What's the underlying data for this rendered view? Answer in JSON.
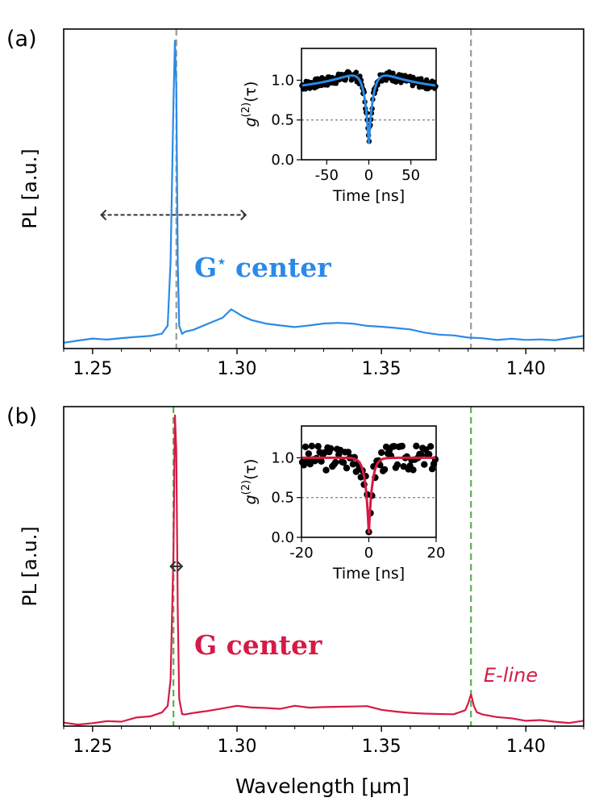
{
  "figure": {
    "xlabel": "Wavelength [μm]",
    "colors": {
      "blue": "#2b8ae6",
      "red": "#d61a45",
      "grey": "#9a9a9a",
      "green": "#5aaf50",
      "black": "#000000",
      "dark": "#333333"
    }
  },
  "chart_data": [
    {
      "type": "line",
      "panel_label": "(a)",
      "ylabel": "PL [a.u.]",
      "annotation": "G",
      "annotation_sup": "⋆",
      "annotation_suffix": " center",
      "xlim": [
        1.24,
        1.42
      ],
      "ylim": [
        0,
        1.1
      ],
      "xticks": [
        1.25,
        1.3,
        1.35,
        1.4
      ],
      "xtick_labels": [
        "1.25",
        "1.30",
        "1.35",
        "1.40"
      ],
      "vlines": [
        1.279,
        1.381
      ],
      "vline_color": "grey",
      "bar": {
        "x0": 1.253,
        "x1": 1.303,
        "y": 0.46
      },
      "series": [
        {
          "color": "blue",
          "x": [
            1.24,
            1.245,
            1.25,
            1.255,
            1.26,
            1.265,
            1.27,
            1.274,
            1.276,
            1.277,
            1.278,
            1.2785,
            1.279,
            1.2795,
            1.28,
            1.281,
            1.282,
            1.285,
            1.29,
            1.295,
            1.298,
            1.3,
            1.302,
            1.305,
            1.31,
            1.315,
            1.32,
            1.325,
            1.33,
            1.335,
            1.34,
            1.345,
            1.35,
            1.355,
            1.36,
            1.365,
            1.37,
            1.375,
            1.38,
            1.385,
            1.39,
            1.395,
            1.4,
            1.405,
            1.41,
            1.415,
            1.42
          ],
          "y": [
            0.02,
            0.025,
            0.03,
            0.025,
            0.03,
            0.035,
            0.04,
            0.05,
            0.08,
            0.3,
            0.85,
            1.06,
            0.9,
            0.3,
            0.08,
            0.05,
            0.055,
            0.06,
            0.08,
            0.1,
            0.13,
            0.12,
            0.11,
            0.1,
            0.09,
            0.085,
            0.08,
            0.085,
            0.09,
            0.09,
            0.085,
            0.075,
            0.07,
            0.065,
            0.06,
            0.05,
            0.045,
            0.045,
            0.04,
            0.04,
            0.035,
            0.04,
            0.035,
            0.035,
            0.03,
            0.035,
            0.04
          ]
        }
      ],
      "inset": {
        "xlim": [
          -80,
          80
        ],
        "ylim": [
          0,
          1.4
        ],
        "xticks": [
          -50,
          0,
          50
        ],
        "xtick_labels": [
          "-50",
          "0",
          "50"
        ],
        "yticks": [
          0,
          0.5,
          1.0
        ],
        "ytick_labels": [
          "0.0",
          "0.5",
          "1.0"
        ],
        "xlabel": "Time [ns]",
        "ylabel": "g(2)(τ)",
        "ylabel_base": "g",
        "ylabel_sup": "(2)",
        "ylabel_arg": "(τ)",
        "hline": 0.5,
        "fit": {
          "a": 0.8,
          "t": 5,
          "b": 0.22,
          "c": 28,
          "d": 0.08
        },
        "points": {
          "n": 220,
          "noise": 0.06,
          "seed": 7
        }
      }
    },
    {
      "type": "line",
      "panel_label": "(b)",
      "ylabel": "PL [a.u.]",
      "annotation": "G center",
      "annotation_sup": "",
      "annotation_suffix": "",
      "side_label": "E-line",
      "xlim": [
        1.24,
        1.42
      ],
      "ylim": [
        0,
        1.1
      ],
      "xticks": [
        1.25,
        1.3,
        1.35,
        1.4
      ],
      "xtick_labels": [
        "1.25",
        "1.30",
        "1.35",
        "1.40"
      ],
      "vlines": [
        1.278,
        1.381
      ],
      "vline_color": "green",
      "bar": {
        "x0": 1.277,
        "x1": 1.281,
        "y": 0.55
      },
      "series": [
        {
          "color": "red",
          "x": [
            1.24,
            1.245,
            1.25,
            1.255,
            1.26,
            1.265,
            1.27,
            1.274,
            1.276,
            1.277,
            1.278,
            1.2785,
            1.279,
            1.2795,
            1.28,
            1.281,
            1.282,
            1.285,
            1.29,
            1.295,
            1.3,
            1.305,
            1.31,
            1.315,
            1.32,
            1.325,
            1.33,
            1.335,
            1.34,
            1.345,
            1.35,
            1.355,
            1.36,
            1.365,
            1.37,
            1.375,
            1.379,
            1.38,
            1.381,
            1.382,
            1.383,
            1.385,
            1.39,
            1.395,
            1.4,
            1.405,
            1.41,
            1.415,
            1.42
          ],
          "y": [
            0.02,
            0.015,
            0.02,
            0.025,
            0.02,
            0.03,
            0.03,
            0.04,
            0.06,
            0.15,
            0.6,
            1.07,
            0.95,
            0.4,
            0.1,
            0.05,
            0.05,
            0.055,
            0.06,
            0.065,
            0.07,
            0.06,
            0.055,
            0.05,
            0.06,
            0.055,
            0.06,
            0.065,
            0.07,
            0.075,
            0.065,
            0.06,
            0.055,
            0.05,
            0.045,
            0.04,
            0.05,
            0.07,
            0.1,
            0.06,
            0.04,
            0.035,
            0.03,
            0.03,
            0.025,
            0.03,
            0.025,
            0.02,
            0.025
          ]
        }
      ],
      "inset": {
        "xlim": [
          -20,
          20
        ],
        "ylim": [
          0,
          1.4
        ],
        "xticks": [
          -20,
          0,
          20
        ],
        "xtick_labels": [
          "-20",
          "0",
          "20"
        ],
        "yticks": [
          0,
          0.5,
          1.0
        ],
        "ytick_labels": [
          "0.0",
          "0.5",
          "1.0"
        ],
        "xlabel": "Time [ns]",
        "ylabel": "g(2)(τ)",
        "ylabel_base": "g",
        "ylabel_sup": "(2)",
        "ylabel_arg": "(τ)",
        "hline": 0.5,
        "fit": {
          "a": 0.95,
          "t": 1.0,
          "b": 0,
          "c": 10,
          "d": 1.0
        },
        "points": {
          "n": 85,
          "noise": 0.16,
          "seed": 3
        }
      }
    }
  ]
}
